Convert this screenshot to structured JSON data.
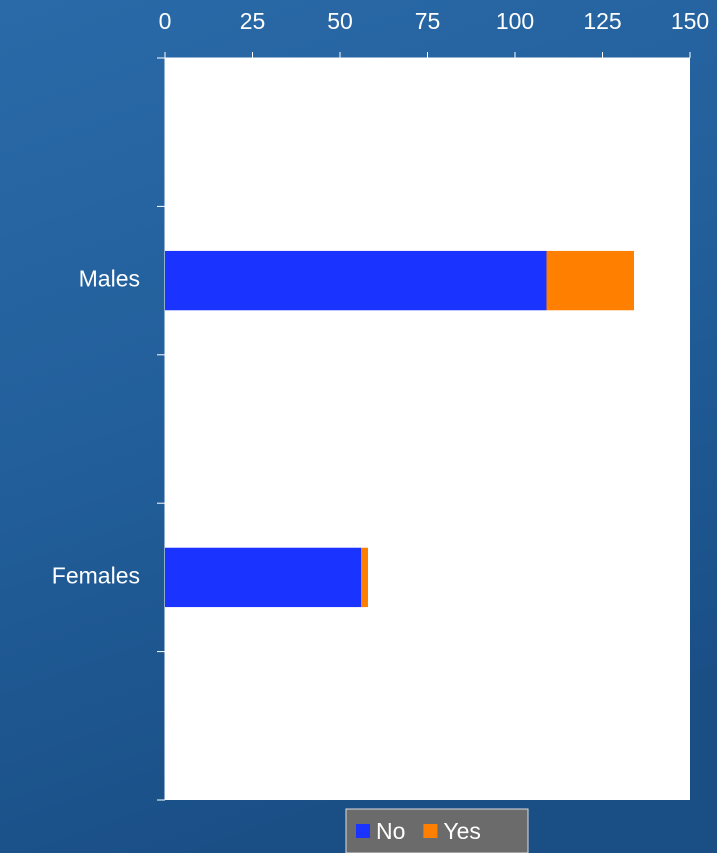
{
  "chart_data": {
    "type": "bar",
    "orientation": "horizontal",
    "stacked": true,
    "categories": [
      null,
      "Males",
      null,
      "Females",
      null
    ],
    "series": [
      {
        "name": "No",
        "color": "#1a33ff",
        "values": [
          null,
          109,
          null,
          56,
          null
        ]
      },
      {
        "name": "Yes",
        "color": "#ff8000",
        "values": [
          null,
          25,
          null,
          2,
          null
        ]
      }
    ],
    "xlim": [
      0,
      150
    ],
    "xticks": [
      0,
      25,
      50,
      75,
      100,
      125,
      150
    ],
    "legend": "bottom"
  }
}
